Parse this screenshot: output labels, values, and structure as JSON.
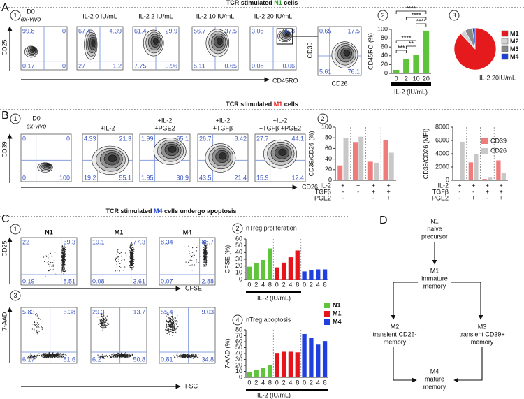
{
  "panels": {
    "A": {
      "letter": "A",
      "title": [
        "TCR stimulated ",
        "N1",
        " cells"
      ],
      "accent": "#2aa02a",
      "steps": [
        "1",
        "2",
        "3"
      ],
      "flow_axes": {
        "y": "CD25",
        "x": "CD45RO"
      },
      "plots": [
        {
          "label": [
            "D0"
          ],
          "sublabel": "ex-vivo",
          "quadrants": [
            99.8,
            0,
            0.17,
            0
          ]
        },
        {
          "label": [
            "IL-2 0 IU/mL"
          ],
          "quadrants": [
            67.4,
            4.39,
            27,
            1.2
          ]
        },
        {
          "label": [
            "IL-2 2 IU/mL"
          ],
          "quadrants": [
            61.4,
            29.9,
            7.75,
            0.96
          ]
        },
        {
          "label": [
            "IL-2 10 IU/mL"
          ],
          "quadrants": [
            56.7,
            37.5,
            5.11,
            0.65
          ]
        },
        {
          "label": [
            "IL-2 20 IU/mL"
          ],
          "quadrants": [
            3.08,
            96.8,
            0.08,
            0.06
          ]
        }
      ],
      "zoom": {
        "y": "CD39",
        "x": "CD26",
        "quadrants": [
          0.65,
          17.5,
          5.61,
          76.1
        ]
      },
      "chart": {
        "type": "bar",
        "ylabel": "CD45RO (%)",
        "xlabel": "IL-2 (IU/mL)",
        "categories": [
          "0",
          "2",
          "10",
          "20"
        ],
        "series": [
          {
            "color": "#5ec43a",
            "values": [
              8,
              32,
              42,
              97
            ]
          }
        ],
        "ylim": [
          0,
          100
        ],
        "yticks": [
          0,
          20,
          40,
          60,
          80,
          100
        ],
        "significance": [
          "****",
          "****",
          "****",
          "****",
          "***",
          "**"
        ]
      },
      "pie": {
        "type": "pie",
        "caption": "IL-2 20IU/mL",
        "labels": [
          "M1",
          "M2",
          "M3",
          "M4"
        ],
        "values": [
          88,
          4,
          6,
          2
        ],
        "colors": [
          "#e41a1c",
          "#d4d4d4",
          "#8a8a8a",
          "#1c3fd6"
        ],
        "label_colors": [
          "#e41a1c",
          "#222222",
          "#222222",
          "#1c3fd6"
        ]
      }
    },
    "B": {
      "letter": "B",
      "title": [
        "TCR stimulated ",
        "M1",
        " cells"
      ],
      "accent": "#e41a1c",
      "steps": [
        "1",
        "2"
      ],
      "flow_axes": {
        "y": "CD39",
        "x": "CD26"
      },
      "plots": [
        {
          "label": [
            "D0"
          ],
          "sublabel": "ex-vivo",
          "quadrants": [
            0,
            0,
            0,
            100
          ]
        },
        {
          "label": [
            "+IL-2"
          ],
          "quadrants": [
            4.33,
            21.3,
            19.2,
            55.1
          ]
        },
        {
          "label": [
            "+IL-2",
            "+PGE2"
          ],
          "quadrants": [
            1.99,
            65.1,
            1.95,
            30.9
          ]
        },
        {
          "label": [
            "+IL-2",
            "+TGFβ"
          ],
          "quadrants": [
            26.7,
            8.42,
            43.5,
            21.4
          ]
        },
        {
          "label": [
            "+IL-2",
            "+TGFβ +PGE2"
          ],
          "quadrants": [
            27.7,
            44.1,
            15.9,
            12.4
          ]
        }
      ],
      "conditions": [
        {
          "name": "IL-2",
          "signs": [
            "+",
            "+",
            "+",
            "+"
          ]
        },
        {
          "name": "TGFβ",
          "signs": [
            "-",
            "-",
            "+",
            "+"
          ]
        },
        {
          "name": "PGE2",
          "signs": [
            "-",
            "+",
            "-",
            "+"
          ]
        }
      ],
      "charts": [
        {
          "type": "bar",
          "ylabel": "CD39/CD26 (%)",
          "ylim": [
            0,
            100
          ],
          "yticks": [
            0,
            20,
            40,
            60,
            80,
            100
          ],
          "series": [
            {
              "name": "CD39",
              "color": "#f07b7b",
              "values": [
                28,
                72,
                35,
                76
              ]
            },
            {
              "name": "CD26",
              "color": "#c8c8c8",
              "values": [
                80,
                82,
                33,
                52
              ]
            }
          ]
        },
        {
          "type": "bar",
          "ylabel": "CD39/CD26 (MFI)",
          "ylim": [
            0,
            8000
          ],
          "yticks": [
            0,
            2000,
            4000,
            6000,
            8000
          ],
          "legend": "upper right",
          "series": [
            {
              "name": "CD39",
              "color": "#f07b7b",
              "values": [
                100,
                2700,
                200,
                3000
              ]
            },
            {
              "name": "CD26",
              "color": "#c8c8c8",
              "values": [
                5800,
                4000,
                400,
                1100
              ]
            }
          ]
        }
      ]
    },
    "C": {
      "letter": "C",
      "title": [
        "TCR stimulated ",
        "M4",
        " cells undergo apoptosis"
      ],
      "accent": "#1c3fd6",
      "steps": [
        "1",
        "2",
        "3",
        "4"
      ],
      "columns": [
        {
          "name": "N1",
          "color": "#2aa02a"
        },
        {
          "name": "M1",
          "color": "#e41a1c"
        },
        {
          "name": "M4",
          "color": "#1c3fd6"
        }
      ],
      "rows": [
        {
          "y": "CD25",
          "x": "CFSE",
          "quadrants": [
            [
              22,
              69.3,
              0.19,
              8.51
            ],
            [
              19.1,
              77.3,
              0.08,
              3.61
            ],
            [
              8.34,
              88.7,
              0.07,
              2.88
            ]
          ]
        },
        {
          "y": "7-AAD",
          "x": "FSC",
          "quadrants": [
            [
              5.83,
              6.38,
              6.17,
              81.6
            ],
            [
              29.3,
              13.7,
              6.2,
              50.8
            ],
            [
              55.4,
              9.03,
              0.81,
              34.8
            ]
          ]
        }
      ],
      "charts": [
        {
          "type": "bar",
          "subtitle": "nTreg proliferation",
          "ylabel": "CFSE (%)",
          "xlabel": "IL-2 (IU/mL)",
          "categories": [
            "0",
            "2",
            "4",
            "8"
          ],
          "ylim": [
            0,
            60
          ],
          "yticks": [
            0,
            10,
            20,
            30,
            40,
            50,
            60
          ],
          "series": [
            {
              "name": "N1",
              "color": "#5ec43a",
              "values": [
                19,
                24,
                29,
                46
              ]
            },
            {
              "name": "M1",
              "color": "#e8141c",
              "values": [
                18,
                25,
                33,
                43
              ]
            },
            {
              "name": "M4",
              "color": "#1f3fe0",
              "values": [
                12,
                14,
                15,
                15
              ]
            }
          ]
        },
        {
          "type": "bar",
          "subtitle": "nTreg apoptosis",
          "ylabel": "7-AAD (%)",
          "xlabel": "IL-2 (IU/mL)",
          "categories": [
            "0",
            "2",
            "4",
            "8"
          ],
          "ylim": [
            0,
            80
          ],
          "yticks": [
            0,
            10,
            20,
            30,
            40,
            50,
            60,
            70,
            80
          ],
          "series": [
            {
              "name": "N1",
              "color": "#5ec43a",
              "values": [
                9,
                12,
                16,
                20
              ]
            },
            {
              "name": "M1",
              "color": "#e8141c",
              "values": [
                41,
                43,
                43,
                42
              ]
            },
            {
              "name": "M4",
              "color": "#1f3fe0",
              "values": [
                73,
                67,
                55,
                61
              ]
            }
          ]
        }
      ]
    },
    "D": {
      "letter": "D",
      "nodes": [
        {
          "lines": [
            "N1",
            "naive",
            "precursor"
          ],
          "color": "#2aa02a"
        },
        {
          "lines": [
            "M1",
            "immature",
            "memory"
          ],
          "color": "#e41a1c"
        },
        {
          "lines": [
            "M2",
            "transient CD26-",
            "memory"
          ],
          "color": "#222222"
        },
        {
          "lines": [
            "M3",
            "transient CD39+",
            "memory"
          ],
          "color": "#222222"
        },
        {
          "lines": [
            "M4",
            "mature",
            "memory"
          ],
          "color": "#1c3fd6"
        }
      ]
    }
  }
}
